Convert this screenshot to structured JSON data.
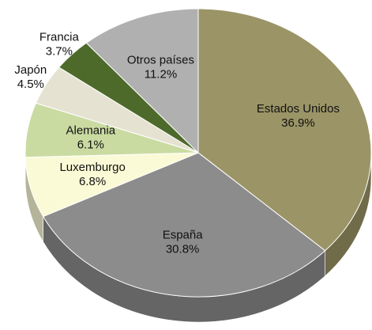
{
  "chart_data": {
    "type": "pie",
    "categories": [
      "Estados Unidos",
      "España",
      "Luxemburgo",
      "Alemania",
      "Japón",
      "Francia",
      "Otros países"
    ],
    "values": [
      36.9,
      30.8,
      6.8,
      6.1,
      4.5,
      3.7,
      11.2
    ],
    "value_labels": [
      "36.9%",
      "30.8%",
      "6.8%",
      "6.1%",
      "4.5%",
      "3.7%",
      "11.2%"
    ],
    "colors": [
      "#9b9466",
      "#8c8c8c",
      "#fafad6",
      "#cadba2",
      "#e6e2d2",
      "#4d6a2b",
      "#b0b0b0"
    ]
  }
}
